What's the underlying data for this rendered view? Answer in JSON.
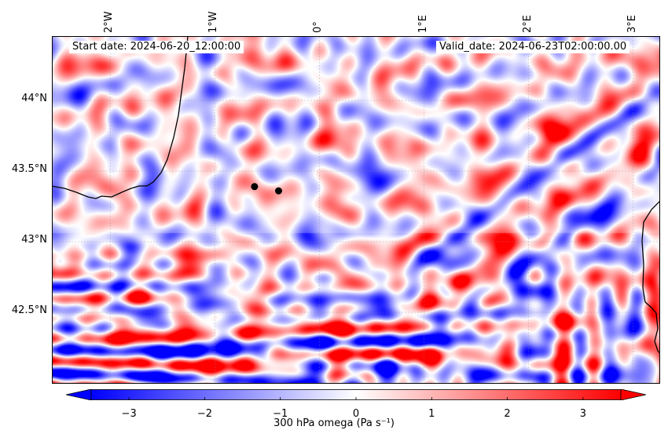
{
  "map": {
    "start_date": "Start date: 2024-06-20_12:00:00",
    "valid_date": "Valid_date: 2024-06-23T02:00:00.00",
    "lon_labels": [
      {
        "label": "2°W",
        "value": -2
      },
      {
        "label": "1°W",
        "value": -1
      },
      {
        "label": "0°",
        "value": 0
      },
      {
        "label": "1°E",
        "value": 1
      },
      {
        "label": "2°E",
        "value": 2
      },
      {
        "label": "3°E",
        "value": 3
      }
    ],
    "lat_labels": [
      {
        "label": "44°N",
        "value": 44.0
      },
      {
        "label": "43.5°N",
        "value": 43.5
      },
      {
        "label": "43°N",
        "value": 43.0
      },
      {
        "label": "42.5°N",
        "value": 42.5
      }
    ],
    "lon_range": [
      -2.55,
      3.25
    ],
    "lat_range": [
      42.0,
      44.45
    ],
    "markers": [
      {
        "lon": -0.62,
        "lat": 43.39
      },
      {
        "lon": -0.39,
        "lat": 43.36
      }
    ],
    "colormap": "bwr"
  },
  "colorbar": {
    "label": "300 hPa omega (Pa s⁻¹)",
    "min": -3.5,
    "max": 3.5,
    "extend": "both",
    "ticks": [
      {
        "label": "−3",
        "value": -3
      },
      {
        "label": "−2",
        "value": -2
      },
      {
        "label": "−1",
        "value": -1
      },
      {
        "label": "0",
        "value": 0
      },
      {
        "label": "1",
        "value": 1
      },
      {
        "label": "2",
        "value": 2
      },
      {
        "label": "3",
        "value": 3
      }
    ]
  }
}
